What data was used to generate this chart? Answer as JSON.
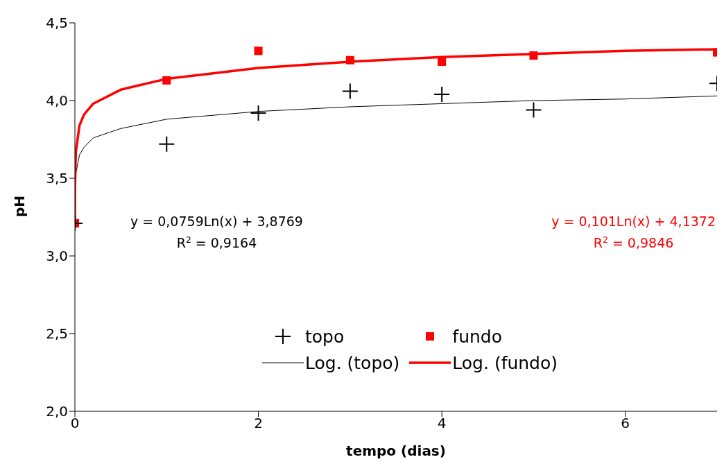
{
  "chart_data": {
    "type": "scatter",
    "xlabel": "tempo (dias)",
    "ylabel": "pH",
    "xlim": [
      0,
      7
    ],
    "xticks": [
      0,
      2,
      4,
      6
    ],
    "ylim": [
      2,
      4.5
    ],
    "yticks": [
      {
        "value": 2,
        "label": "2,0"
      },
      {
        "value": 2.5,
        "label": "2,5"
      },
      {
        "value": 3,
        "label": "3,0"
      },
      {
        "value": 3.5,
        "label": "3,5"
      },
      {
        "value": 4,
        "label": "4,0"
      },
      {
        "value": 4.5,
        "label": "4,5"
      }
    ],
    "grid": false,
    "legend": "bottom",
    "series": [
      {
        "name": "topo",
        "marker": "cross",
        "color": "#000000",
        "x": [
          0,
          1,
          2,
          3,
          4,
          5,
          7
        ],
        "values": [
          3.21,
          3.72,
          3.92,
          4.06,
          4.04,
          3.94,
          4.11
        ]
      },
      {
        "name": "fundo",
        "marker": "square",
        "color": "#ff0000",
        "x": [
          0,
          1,
          2,
          3,
          4,
          5,
          7
        ],
        "values": [
          3.21,
          4.13,
          4.32,
          4.26,
          4.25,
          4.29,
          4.31
        ]
      },
      {
        "name": "Log. (topo)",
        "type": "line",
        "marker": "none",
        "color": "#000000",
        "x": [
          0.01,
          0.05,
          0.1,
          0.2,
          0.5,
          1,
          2,
          3,
          4,
          5,
          6,
          7
        ],
        "values": [
          3.53,
          3.65,
          3.7,
          3.76,
          3.82,
          3.88,
          3.93,
          3.96,
          3.98,
          4.0,
          4.01,
          4.03
        ]
      },
      {
        "name": "Log. (fundo)",
        "type": "line",
        "marker": "none",
        "color": "#ff0000",
        "x": [
          0.0001,
          0.001,
          0.01,
          0.05,
          0.1,
          0.2,
          0.5,
          1,
          2,
          3,
          4,
          5,
          6,
          7
        ],
        "values": [
          3.21,
          3.44,
          3.67,
          3.84,
          3.91,
          3.98,
          4.07,
          4.14,
          4.21,
          4.25,
          4.28,
          4.3,
          4.32,
          4.33
        ]
      }
    ],
    "annotations": [
      "y = 0,0759Ln(x) + 3,8769\nR$^{2}$ = 0,9164",
      "y = 0,101Ln(x) + 4,1372\nR$^{2}$ = 0,9846"
    ]
  }
}
